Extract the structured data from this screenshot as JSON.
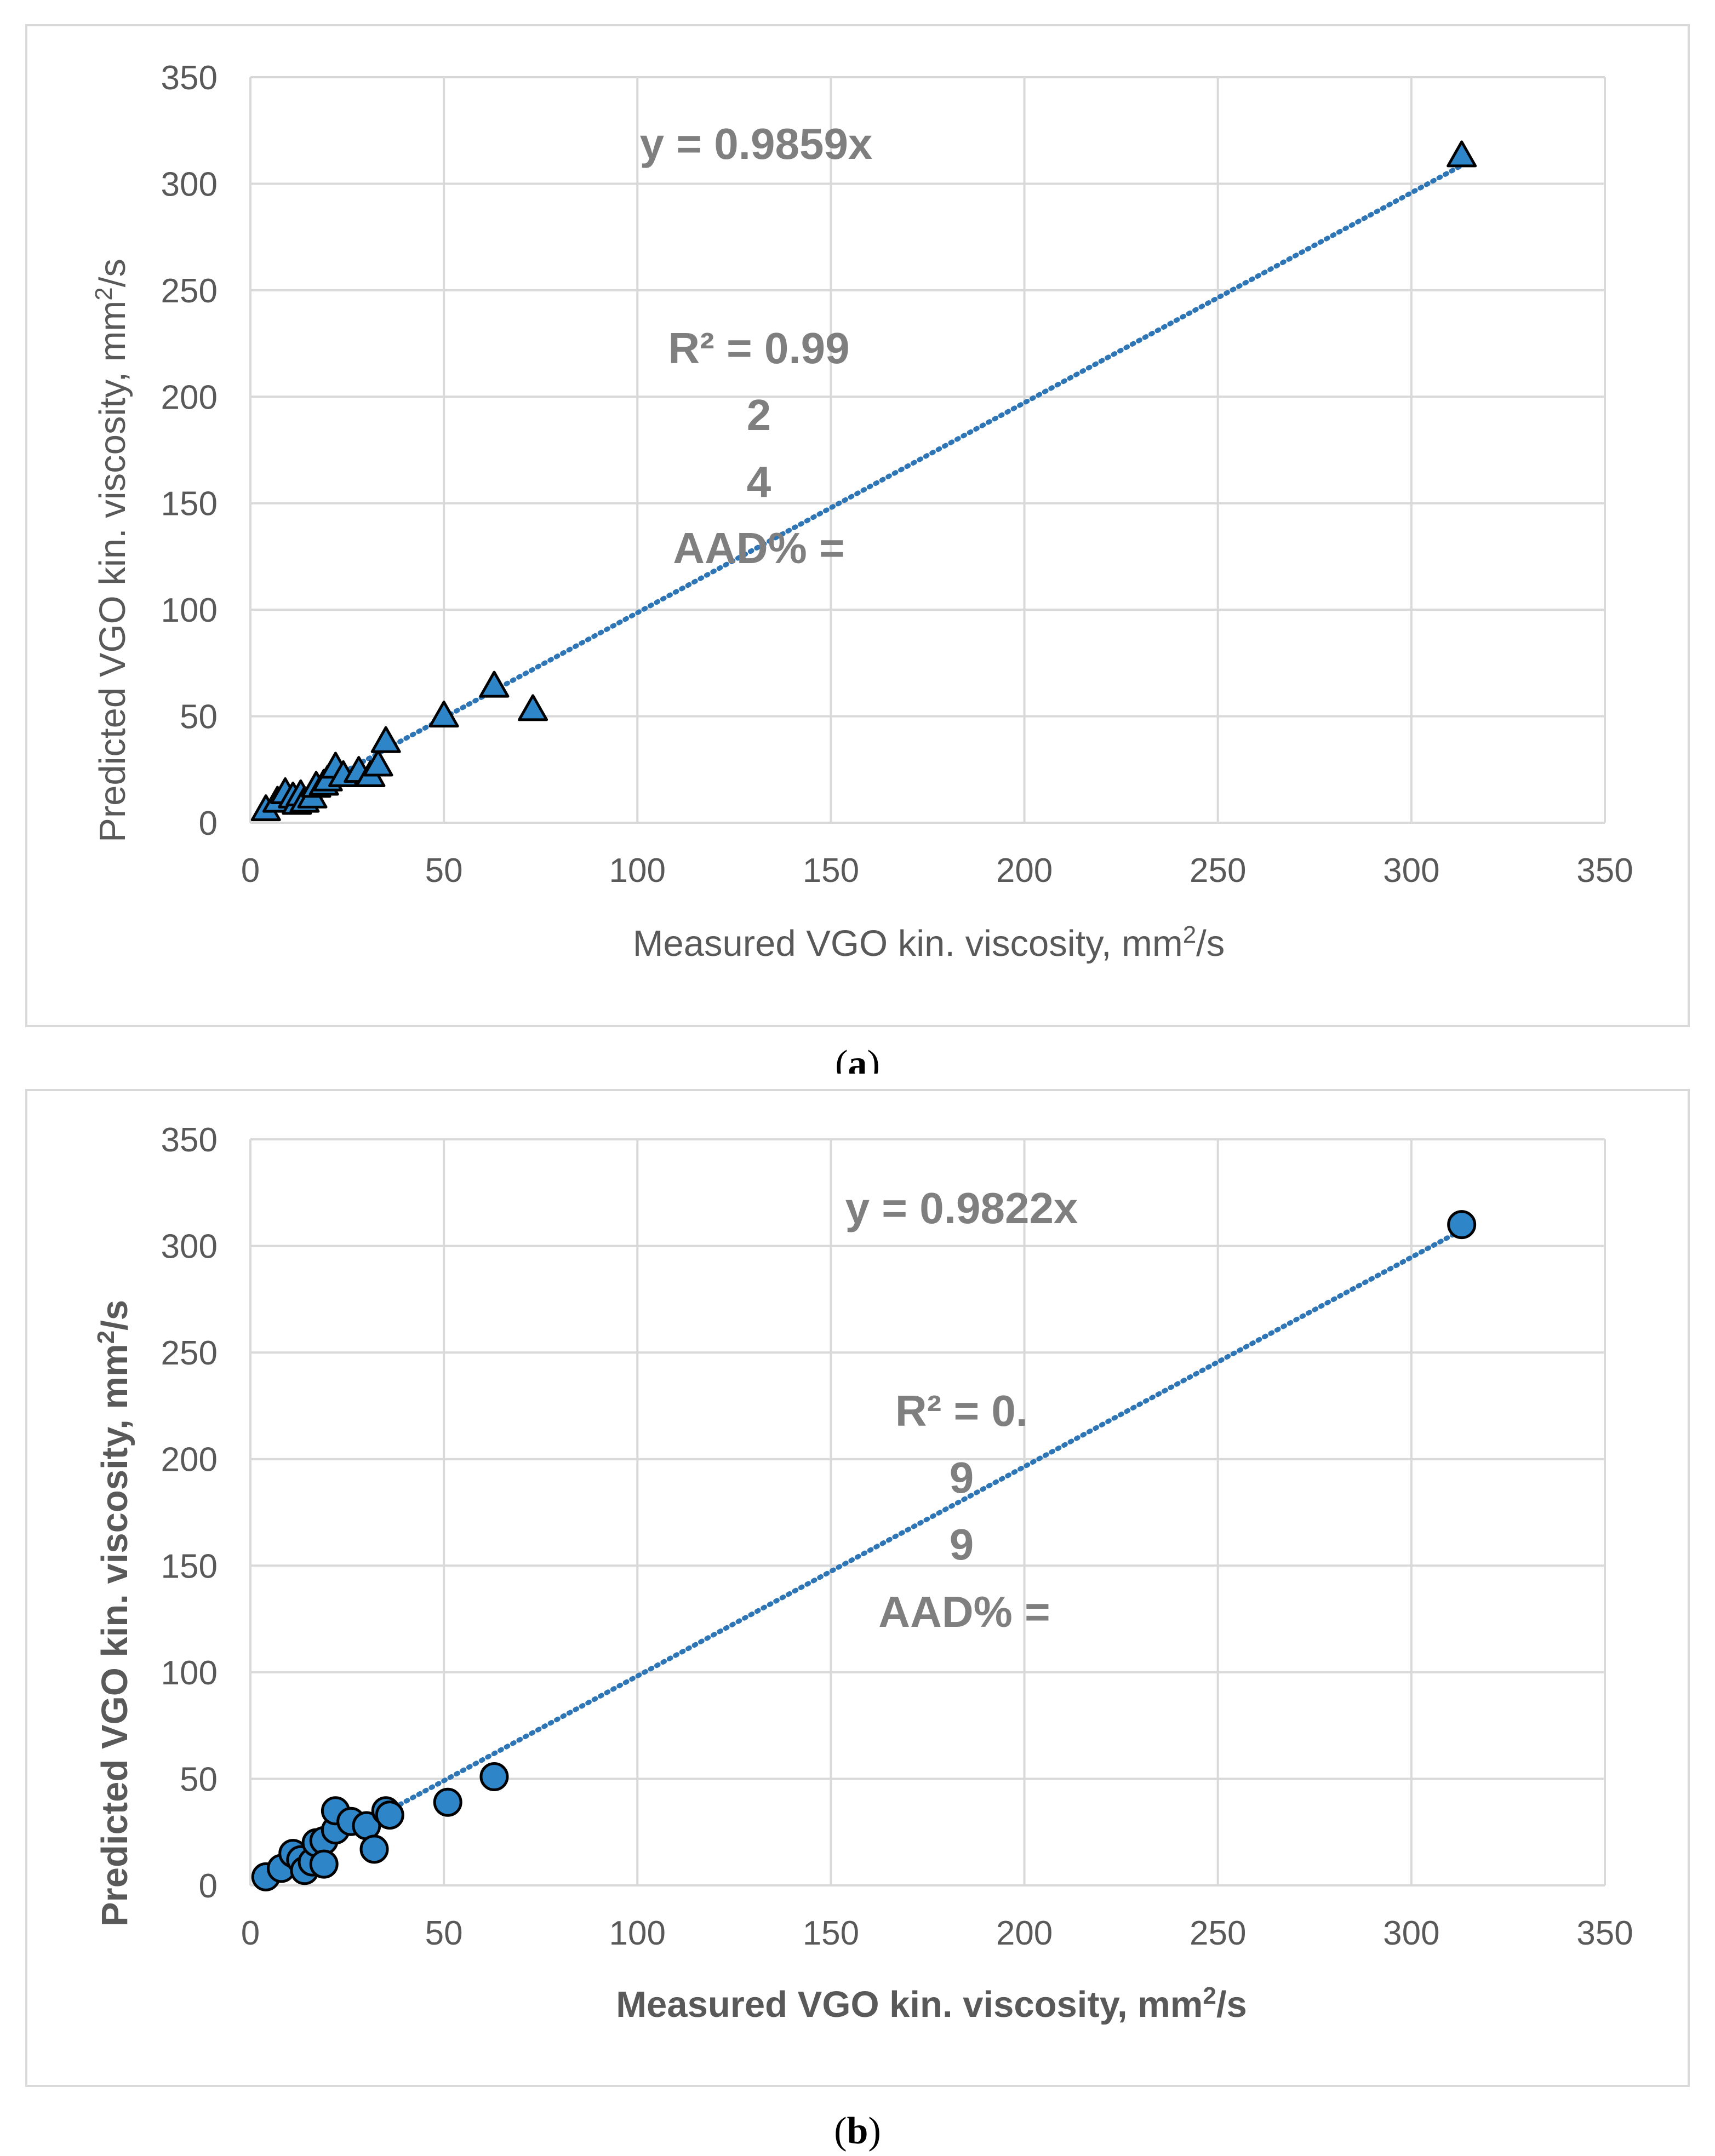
{
  "chart_data": [
    {
      "type": "scatter",
      "panel_label": "a",
      "marker": "triangle",
      "xlabel": "Measured VGO kin. viscosity, mm",
      "ylabel": "Predicted VGO kin. viscosity, mm",
      "unit_sup": "2",
      "unit_tail": "/s",
      "xlim": [
        0,
        350
      ],
      "ylim": [
        0,
        350
      ],
      "xticks": [
        "0",
        "50",
        "100",
        "150",
        "200",
        "250",
        "300",
        "350"
      ],
      "yticks": [
        "0",
        "50",
        "100",
        "150",
        "200",
        "250",
        "300",
        "350"
      ],
      "grid": true,
      "trendline": {
        "slope": 0.9859,
        "x_range": [
          3,
          313
        ]
      },
      "annotations": {
        "equation": "y = 0.9859x",
        "r2_lines": [
          "R² = 0.99",
          "2",
          "4",
          "AAD% ="
        ]
      },
      "points": [
        {
          "x": 4,
          "y": 6
        },
        {
          "x": 7,
          "y": 10
        },
        {
          "x": 9,
          "y": 14
        },
        {
          "x": 11,
          "y": 12
        },
        {
          "x": 12,
          "y": 9
        },
        {
          "x": 13,
          "y": 13
        },
        {
          "x": 14,
          "y": 10
        },
        {
          "x": 16,
          "y": 12
        },
        {
          "x": 17,
          "y": 17
        },
        {
          "x": 19,
          "y": 18
        },
        {
          "x": 20,
          "y": 20
        },
        {
          "x": 22,
          "y": 26
        },
        {
          "x": 24,
          "y": 22
        },
        {
          "x": 28,
          "y": 24
        },
        {
          "x": 31,
          "y": 22
        },
        {
          "x": 33,
          "y": 27
        },
        {
          "x": 35,
          "y": 38
        },
        {
          "x": 50,
          "y": 50
        },
        {
          "x": 63,
          "y": 64
        },
        {
          "x": 73,
          "y": 53
        },
        {
          "x": 313,
          "y": 313
        }
      ]
    },
    {
      "type": "scatter",
      "panel_label": "b",
      "marker": "circle",
      "xlabel": "Measured VGO kin. viscosity, mm",
      "ylabel": "Predicted VGO kin. viscosity, mm",
      "unit_sup": "2",
      "unit_tail": "/s",
      "xlim": [
        0,
        350
      ],
      "ylim": [
        0,
        350
      ],
      "xticks": [
        "0",
        "50",
        "100",
        "150",
        "200",
        "250",
        "300",
        "350"
      ],
      "yticks": [
        "0",
        "50",
        "100",
        "150",
        "200",
        "250",
        "300",
        "350"
      ],
      "grid": true,
      "trendline": {
        "slope": 0.9822,
        "x_range": [
          3,
          313
        ]
      },
      "annotations": {
        "equation": "y = 0.9822x",
        "r2_lines": [
          "R² = 0.",
          "9",
          "9",
          "AAD% ="
        ]
      },
      "points": [
        {
          "x": 4,
          "y": 4
        },
        {
          "x": 8,
          "y": 8
        },
        {
          "x": 11,
          "y": 15
        },
        {
          "x": 13,
          "y": 12
        },
        {
          "x": 14,
          "y": 7
        },
        {
          "x": 16,
          "y": 11
        },
        {
          "x": 17,
          "y": 20
        },
        {
          "x": 19,
          "y": 21
        },
        {
          "x": 19,
          "y": 10
        },
        {
          "x": 22,
          "y": 26
        },
        {
          "x": 22,
          "y": 35
        },
        {
          "x": 26,
          "y": 30
        },
        {
          "x": 30,
          "y": 28
        },
        {
          "x": 32,
          "y": 17
        },
        {
          "x": 35,
          "y": 35
        },
        {
          "x": 36,
          "y": 33
        },
        {
          "x": 51,
          "y": 39
        },
        {
          "x": 63,
          "y": 51
        },
        {
          "x": 313,
          "y": 310
        }
      ]
    }
  ]
}
